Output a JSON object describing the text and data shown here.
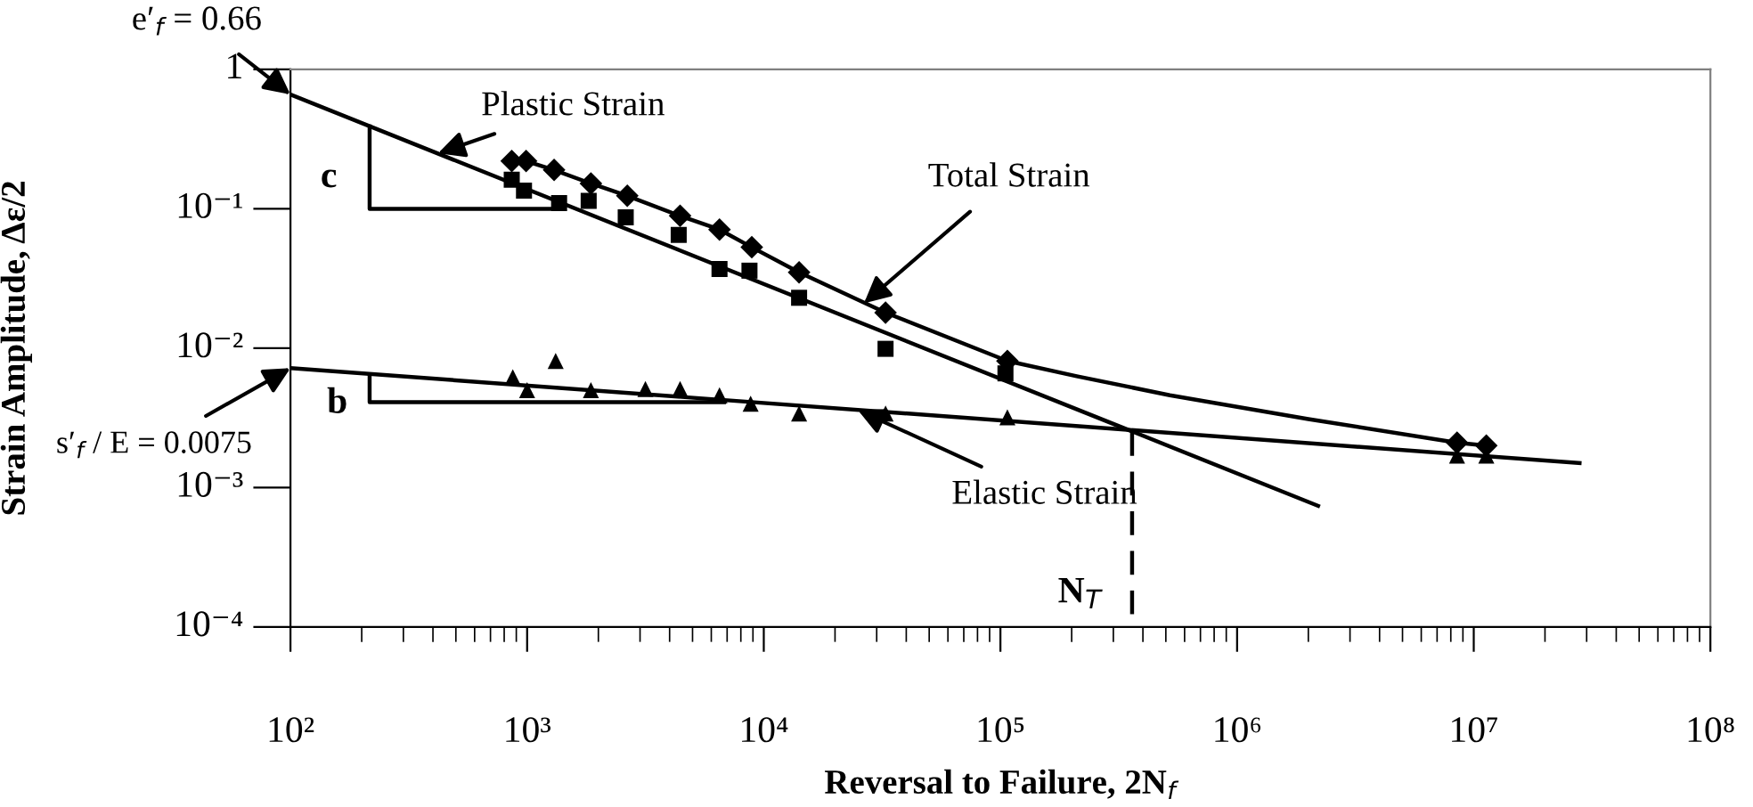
{
  "chart_data": {
    "type": "scatter",
    "xlabel": "Reversal to Failure, 2N$_{f}$",
    "ylabel": "Strain Amplitude, Δε/2",
    "log": "xy",
    "xlim": [
      100,
      100000000
    ],
    "xticks": [
      {
        "value": 100,
        "label": "10²"
      },
      {
        "value": 1000,
        "label": "10³"
      },
      {
        "value": 10000,
        "label": "10⁴"
      },
      {
        "value": 100000,
        "label": "10⁵"
      },
      {
        "value": 1000000,
        "label": "10⁶"
      },
      {
        "value": 10000000,
        "label": "10⁷"
      },
      {
        "value": 100000000,
        "label": "10⁸"
      }
    ],
    "ylim": [
      0.0001,
      1
    ],
    "yticks": [
      {
        "value": 0.0001,
        "label": "10⁻⁴"
      },
      {
        "value": 0.001,
        "label": "10⁻³"
      },
      {
        "value": 0.01,
        "label": "10⁻²"
      },
      {
        "value": 0.1,
        "label": "10⁻¹"
      },
      1
    ],
    "grid": false,
    "series": [
      {
        "marker": "square",
        "color": "#000000",
        "x": [
          861,
          970,
          1365,
          1820,
          2610,
          4370,
          6500,
          8700,
          14100,
          32700,
          105000
        ],
        "values": [
          0.162,
          0.135,
          0.11,
          0.114,
          0.087,
          0.065,
          0.037,
          0.036,
          0.023,
          0.0099,
          0.0066
        ]
      },
      {
        "marker": "diamond",
        "color": "#000000",
        "x": [
          861,
          990,
          1300,
          1860,
          2650,
          4430,
          6500,
          8900,
          14100,
          32700,
          107000,
          8500000,
          11300000
        ],
        "values": [
          0.22,
          0.22,
          0.19,
          0.152,
          0.124,
          0.089,
          0.071,
          0.053,
          0.035,
          0.018,
          0.0081,
          0.0021,
          0.002
        ]
      },
      {
        "marker": "triangle",
        "color": "#000000",
        "x": [
          870,
          1000,
          1320,
          1860,
          3160,
          4430,
          6500,
          8800,
          14100,
          32700,
          107000,
          8500000,
          11300000
        ],
        "values": [
          0.0062,
          0.005,
          0.0081,
          0.005,
          0.0051,
          0.0051,
          0.0046,
          0.004,
          0.0034,
          0.0034,
          0.0032,
          0.0017,
          0.0017
        ]
      },
      {
        "type": "line",
        "line_style": "solid",
        "color": "#000000",
        "x": [
          100,
          2200000
        ],
        "values": [
          0.66,
          0.00074
        ]
      },
      {
        "type": "line",
        "line_style": "solid",
        "color": "#000000",
        "x": [
          100,
          28000000
        ],
        "values": [
          0.0072,
          0.0015
        ]
      },
      {
        "type": "line",
        "line_style": "solid",
        "color": "#000000",
        "x": [
          861,
          990,
          1300,
          1860,
          2650,
          4430,
          6500,
          8900,
          14100,
          32700,
          107000,
          210000,
          520000,
          2000000,
          8500000,
          11300000
        ],
        "values": [
          0.22,
          0.22,
          0.19,
          0.152,
          0.124,
          0.089,
          0.071,
          0.053,
          0.035,
          0.018,
          0.0081,
          0.0063,
          0.0046,
          0.0031,
          0.0021,
          0.002
        ]
      },
      {
        "type": "line",
        "line_style": "solid",
        "color": "#000000",
        "x": [
          216,
          216,
          1365
        ],
        "values": [
          0.39,
          0.1,
          0.1
        ]
      },
      {
        "type": "line",
        "line_style": "solid",
        "color": "#000000",
        "x": [
          216,
          216,
          6800
        ],
        "values": [
          0.0063,
          0.0041,
          0.0041
        ]
      },
      {
        "type": "line",
        "line_style": "dashed",
        "color": "#000000",
        "x": [
          360000,
          360000
        ],
        "values": [
          0.0025,
          0.0001
        ]
      }
    ],
    "annotations": [
      {
        "text": "e′$_{f}$ = 0.66",
        "x": 100,
        "y": 0.66
      },
      {
        "text": "Plastic Strain",
        "x": 420,
        "y": 0.25
      },
      {
        "text": "Total Strain",
        "x": 26500,
        "y": 0.021
      },
      {
        "text": "Elastic Strain",
        "x": 25000,
        "y": 0.0036
      },
      {
        "text": "s′$_{f}$ / E = 0.0075",
        "x": 100,
        "y": 0.0072
      },
      "c",
      "b",
      "N$_{T}$"
    ]
  }
}
